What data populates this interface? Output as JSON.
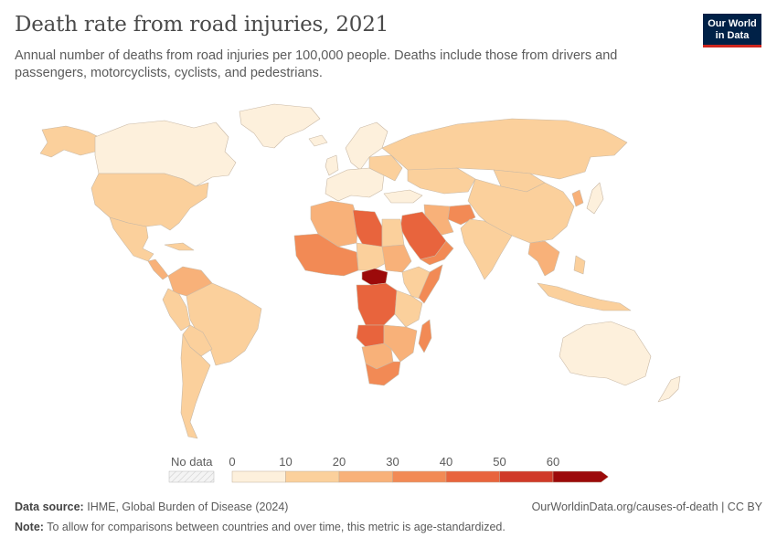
{
  "header": {
    "title": "Death rate from road injuries, 2021",
    "subtitle": "Annual number of deaths from road injuries per 100,000 people. Deaths include those from drivers and passengers, motorcyclists, cyclists, and pedestrians.",
    "logo_line1": "Our World",
    "logo_line2": "in Data"
  },
  "legend": {
    "no_data_label": "No data",
    "ticks": [
      "0",
      "10",
      "20",
      "30",
      "40",
      "50",
      "60"
    ],
    "bins": [
      {
        "range": "0-10",
        "color": "#fdf0dc"
      },
      {
        "range": "10-20",
        "color": "#fbd09c"
      },
      {
        "range": "20-30",
        "color": "#f8b179"
      },
      {
        "range": "30-40",
        "color": "#f28a55"
      },
      {
        "range": "40-50",
        "color": "#e8643d"
      },
      {
        "range": "50-60",
        "color": "#d03a28"
      },
      {
        "range": "60+",
        "color": "#9c0a0a"
      }
    ]
  },
  "footer": {
    "source_label": "Data source:",
    "source_text": "IHME, Global Burden of Disease (2024)",
    "url_text": "OurWorldinData.org/causes-of-death | CC BY",
    "note_label": "Note:",
    "note_text": "To allow for comparisons between countries and over time, this metric is age-standardized."
  }
}
